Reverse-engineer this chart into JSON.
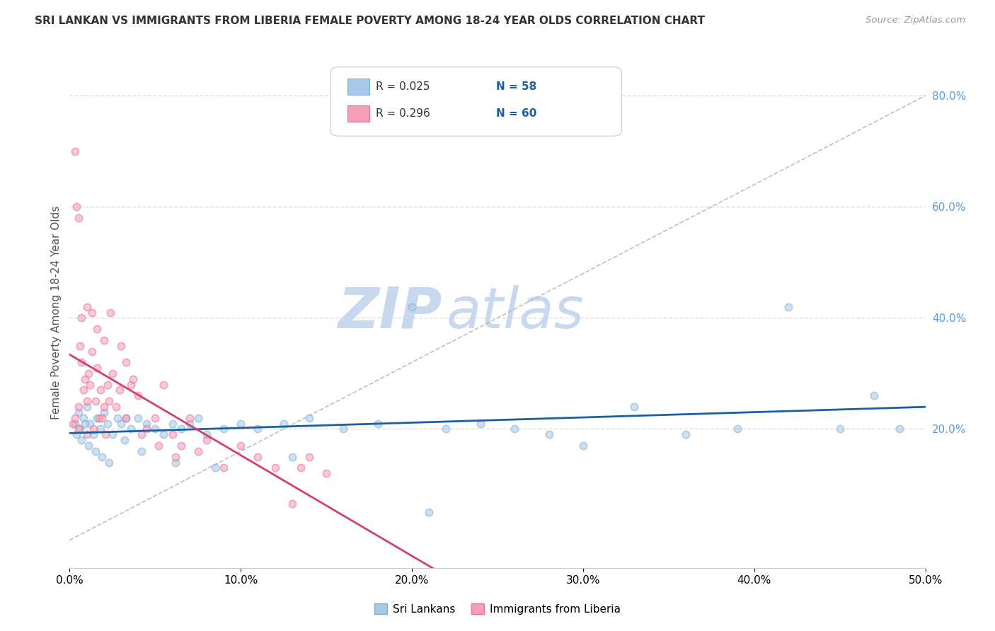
{
  "title": "SRI LANKAN VS IMMIGRANTS FROM LIBERIA FEMALE POVERTY AMONG 18-24 YEAR OLDS CORRELATION CHART",
  "source": "Source: ZipAtlas.com",
  "ylabel": "Female Poverty Among 18-24 Year Olds",
  "right_yticks": [
    20.0,
    40.0,
    60.0,
    80.0
  ],
  "xlim": [
    0.0,
    50.0
  ],
  "ylim": [
    -5.0,
    87.0
  ],
  "legend_blue_r": "R = 0.025",
  "legend_blue_n": "N = 58",
  "legend_pink_r": "R = 0.296",
  "legend_pink_n": "N = 60",
  "label_sri": "Sri Lankans",
  "label_lib": "Immigrants from Liberia",
  "blue_scatter_color": "#a8c8e8",
  "pink_scatter_color": "#f4a0b8",
  "blue_edge_color": "#7bafd4",
  "pink_edge_color": "#e87090",
  "blue_line_color": "#1a5fa0",
  "pink_line_color": "#d04070",
  "text_color_blue": "#1a5fa0",
  "text_color_dark": "#333333",
  "background_color": "#ffffff",
  "grid_color": "#e0e0e0",
  "title_color": "#333333",
  "right_label_color": "#5b9bd5",
  "watermark_color": "#c8d8ef",
  "diag_line_color": "#c0c0c0",
  "sri_x": [
    0.3,
    0.5,
    0.6,
    0.8,
    1.0,
    1.2,
    1.4,
    1.6,
    1.8,
    2.0,
    2.2,
    2.5,
    2.8,
    3.0,
    3.3,
    3.6,
    4.0,
    4.5,
    5.0,
    5.5,
    6.0,
    6.5,
    7.0,
    7.5,
    8.0,
    9.0,
    10.0,
    11.0,
    12.5,
    14.0,
    16.0,
    18.0,
    20.0,
    22.0,
    24.0,
    26.0,
    28.0,
    30.0,
    33.0,
    36.0,
    39.0,
    42.0,
    45.0,
    47.0,
    48.5,
    0.4,
    0.7,
    0.9,
    1.1,
    1.5,
    1.9,
    2.3,
    3.2,
    4.2,
    6.2,
    8.5,
    13.0,
    21.0
  ],
  "sri_y": [
    21.0,
    23.0,
    20.0,
    22.0,
    24.0,
    21.0,
    19.0,
    22.0,
    20.0,
    23.0,
    21.0,
    19.0,
    22.0,
    21.0,
    22.0,
    20.0,
    22.0,
    21.0,
    20.0,
    19.0,
    21.0,
    20.0,
    21.0,
    22.0,
    19.0,
    20.0,
    21.0,
    20.0,
    21.0,
    22.0,
    20.0,
    21.0,
    42.0,
    20.0,
    21.0,
    20.0,
    19.0,
    17.0,
    24.0,
    19.0,
    20.0,
    42.0,
    20.0,
    26.0,
    20.0,
    19.0,
    18.0,
    21.0,
    17.0,
    16.0,
    15.0,
    14.0,
    18.0,
    16.0,
    14.0,
    13.0,
    15.0,
    5.0
  ],
  "lib_x": [
    0.2,
    0.3,
    0.4,
    0.5,
    0.5,
    0.6,
    0.7,
    0.8,
    0.9,
    1.0,
    1.0,
    1.1,
    1.2,
    1.3,
    1.4,
    1.5,
    1.6,
    1.7,
    1.8,
    1.9,
    2.0,
    2.1,
    2.2,
    2.3,
    2.5,
    2.7,
    3.0,
    3.3,
    3.6,
    4.0,
    4.5,
    5.0,
    5.5,
    6.0,
    6.5,
    7.0,
    7.5,
    8.0,
    9.0,
    10.0,
    11.0,
    12.0,
    13.0,
    14.0,
    15.0,
    0.3,
    0.5,
    0.7,
    1.0,
    1.3,
    1.6,
    2.0,
    2.4,
    2.9,
    3.3,
    3.7,
    4.2,
    5.2,
    6.2,
    13.5
  ],
  "lib_y": [
    21.0,
    22.0,
    60.0,
    20.0,
    58.0,
    35.0,
    32.0,
    27.0,
    29.0,
    25.0,
    19.0,
    30.0,
    28.0,
    34.0,
    20.0,
    25.0,
    31.0,
    22.0,
    27.0,
    22.0,
    24.0,
    19.0,
    28.0,
    25.0,
    30.0,
    24.0,
    35.0,
    22.0,
    28.0,
    26.0,
    20.0,
    22.0,
    28.0,
    19.0,
    17.0,
    22.0,
    16.0,
    18.0,
    13.0,
    17.0,
    15.0,
    13.0,
    6.5,
    15.0,
    12.0,
    70.0,
    24.0,
    40.0,
    42.0,
    41.0,
    38.0,
    36.0,
    41.0,
    27.0,
    32.0,
    29.0,
    19.0,
    17.0,
    15.0,
    13.0
  ]
}
